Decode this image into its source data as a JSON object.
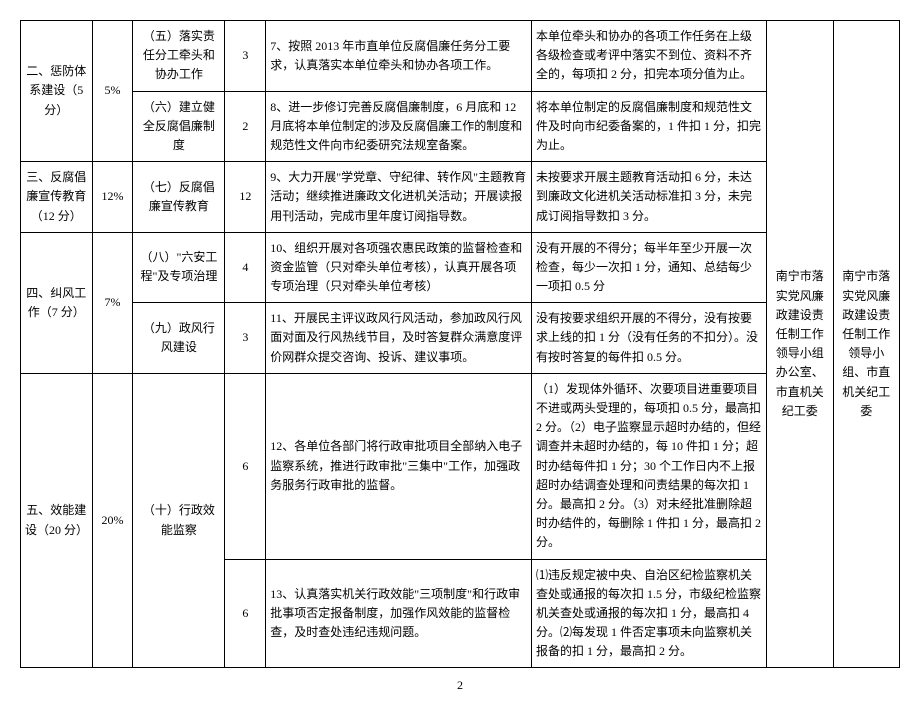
{
  "cols": {
    "c1": 70,
    "c2": 40,
    "c3": 90,
    "c4": 40,
    "c5": 260,
    "c6": 230,
    "c7": 65,
    "c8": 65
  },
  "rows": [
    {
      "sec": "二、惩防体系建设（5 分）",
      "secRows": 2,
      "pct": "5%",
      "pctRows": 2,
      "item": "（五）落实责任分工牵头和协办工作",
      "score": "3",
      "req": "7、按照 2013 年市直单位反腐倡廉任务分工要求，认真落实本单位牵头和协办各项工作。",
      "std": "本单位牵头和协办的各项工作任务在上级各级检查或考评中落实不到位、资料不齐全的，每项扣 2 分，扣完本项分值为止。"
    },
    {
      "item": "（六）建立健全反腐倡廉制度",
      "score": "2",
      "req": "8、进一步修订完善反腐倡廉制度，6 月底和 12 月底将本单位制定的涉及反腐倡廉工作的制度和规范性文件向市纪委研究法规室备案。",
      "std": "将本单位制定的反腐倡廉制度和规范性文件及时向市纪委备案的，1 件扣 1 分，扣完为止。"
    },
    {
      "sec": "三、反腐倡廉宣传教育（12 分）",
      "secRows": 1,
      "pct": "12%",
      "pctRows": 1,
      "item": "（七）反腐倡廉宣传教育",
      "score": "12",
      "req": "9、大力开展\"学党章、守纪律、转作风\"主题教育活动；继续推进廉政文化进机关活动；开展读报用刊活动，完成市里年度订阅指导数。",
      "std": "未按要求开展主题教育活动扣 6 分，未达到廉政文化进机关活动标准扣 3 分，未完成订阅指导数扣 3 分。"
    },
    {
      "sec": "四、纠风工作（7 分）",
      "secRows": 2,
      "pct": "7%",
      "pctRows": 2,
      "item": "（八）\"六安工程\"及专项治理",
      "score": "4",
      "req": "10、组织开展对各项强农惠民政策的监督检查和资金监管（只对牵头单位考核），认真开展各项专项治理（只对牵头单位考核）",
      "std": "没有开展的不得分；每半年至少开展一次检查，每少一次扣 1 分，通知、总结每少一项扣 0.5 分"
    },
    {
      "item": "（九）政风行风建设",
      "score": "3",
      "req": "11、开展民主评议政风行风活动，参加政风行风面对面及行风热线节目，及时答复群众满意度评价网群众提交咨询、投诉、建议事项。",
      "std": "没有按要求组织开展的不得分，没有按要求上线的扣 1 分（没有任务的不扣分）。没有按时答复的每件扣 0.5 分。"
    },
    {
      "sec": "五、效能建设（20 分）",
      "secRows": 2,
      "pct": "20%",
      "pctRows": 2,
      "item": "（十）行政效能监察",
      "itemRows": 2,
      "score": "6",
      "req": "12、各单位各部门将行政审批项目全部纳入电子监察系统，推进行政审批\"三集中\"工作，加强政务服务行政审批的监督。",
      "std": "（1）发现体外循环、次要项目进重要项目不进或两头受理的，每项扣 0.5 分，最高扣 2 分。（2）电子监察显示超时办结的，但经调查并未超时办结的，每 10 件扣 1 分；超时办结每件扣 1 分；30 个工作日内不上报超时办结调查处理和问责结果的每次扣 1 分。最高扣 2 分。（3）对未经批准删除超时办结件的，每删除 1 件扣 1 分，最高扣 2 分。"
    },
    {
      "score": "6",
      "req": "13、认真落实机关行政效能\"三项制度\"和行政审批事项否定报备制度，加强作风效能的监督检查，及时查处违纪违规问题。",
      "std": "⑴违反规定被中央、自治区纪检监察机关查处或通报的每次扣 1.5 分，市级纪检监察机关查处或通报的每次扣 1 分，最高扣 4 分。⑵每发现 1 件否定事项未向监察机关报备的扣 1 分，最高扣 2 分。"
    }
  ],
  "right1": "南宁市落实党风廉政建设责任制工作领导小组办公室、市直机关纪工委",
  "right2": "南宁市落实党风廉政建设责任制工作领导小组、市直机关纪工委",
  "pageNum": "2"
}
